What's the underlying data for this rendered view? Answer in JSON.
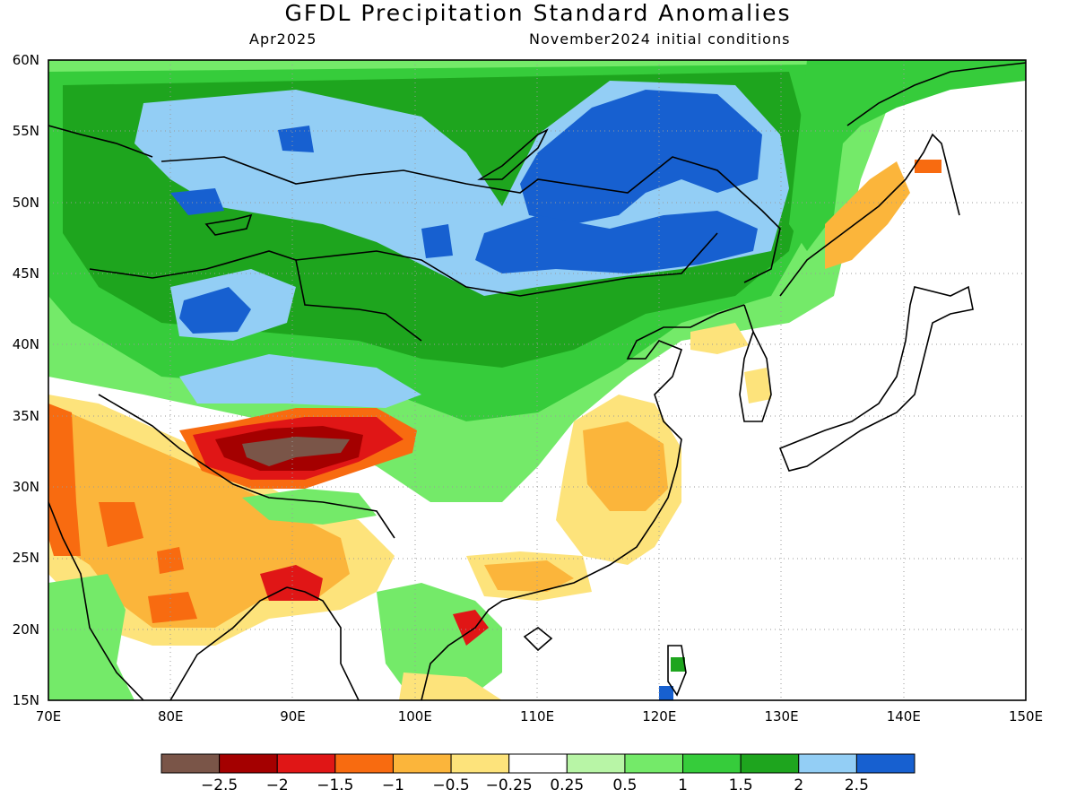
{
  "title": "GFDL Precipitation Standard Anomalies",
  "subtitle_left": "Apr2025",
  "subtitle_right": "November2024 initial conditions",
  "map": {
    "projection": "lat-lon",
    "lon_range": [
      70,
      150
    ],
    "lat_range": [
      15,
      60
    ],
    "lat_labels": [
      "60N",
      "55N",
      "50N",
      "45N",
      "40N",
      "35N",
      "30N",
      "25N",
      "20N",
      "15N"
    ],
    "lon_labels": [
      "70E",
      "80E",
      "90E",
      "100E",
      "110E",
      "120E",
      "130E",
      "140E",
      "150E"
    ],
    "gridlines": "dotted",
    "coastlines_borders": "black"
  },
  "colorbar": {
    "colors": [
      "#7a5548",
      "#a40000",
      "#e01616",
      "#f86b10",
      "#fbb53b",
      "#fde37b",
      "#ffffff",
      "#b8f5a6",
      "#74ea69",
      "#36cc3b",
      "#1ea51e",
      "#93cef5",
      "#1760d0"
    ],
    "labels": [
      "-2.5",
      "-2",
      "-1.5",
      "-1",
      "-0.5",
      "-0.25",
      "0.25",
      "0.5",
      "1",
      "1.5",
      "2",
      "2.5"
    ]
  },
  "anomaly_regions": [
    {
      "name": "siberia-north",
      "level": "1.5",
      "color": "#1ea51e"
    },
    {
      "name": "mongolia-baikal",
      "level": ">2.5",
      "color": "#1760d0"
    },
    {
      "name": "north-mongolia-plateau",
      "level": "2",
      "color": "#93cef5"
    },
    {
      "name": "kazakhstan-wet",
      "level": "2.5",
      "color": "#1760d0"
    },
    {
      "name": "tibet-dry-core",
      "level": "<-2.5",
      "color": "#7a5548"
    },
    {
      "name": "tibet-dry",
      "level": "-2",
      "color": "#a40000"
    },
    {
      "name": "india-dry",
      "level": "-1",
      "color": "#fbb53b"
    },
    {
      "name": "east-china-dry",
      "level": "-0.5",
      "color": "#fde37b"
    },
    {
      "name": "southeast-asia-dry",
      "level": "-1.5",
      "color": "#e01616"
    }
  ]
}
